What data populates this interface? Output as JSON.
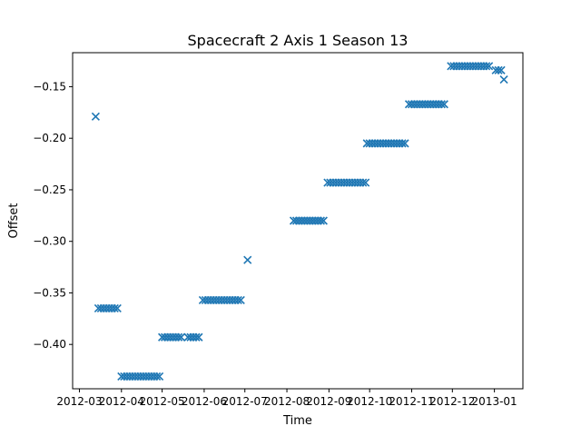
{
  "chart_data": {
    "type": "scatter",
    "title": "Spacecraft 2 Axis 1 Season 13",
    "xlabel": "Time",
    "ylabel": "Offset",
    "marker": "x",
    "color": "#1f77b4",
    "grid": false,
    "legend": "none",
    "xlim": [
      "2012-02-25",
      "2013-01-22"
    ],
    "ylim": [
      -0.443,
      -0.117
    ],
    "x_ticks": [
      "2012-03",
      "2012-04",
      "2012-05",
      "2012-06",
      "2012-07",
      "2012-08",
      "2012-09",
      "2012-10",
      "2012-11",
      "2012-12",
      "2013-01"
    ],
    "y_ticks": [
      -0.4,
      -0.35,
      -0.3,
      -0.25,
      -0.2,
      -0.15
    ],
    "y_tick_labels": [
      "−0.40",
      "−0.35",
      "−0.30",
      "−0.25",
      "−0.20",
      "−0.15"
    ],
    "series": [
      {
        "points": [
          {
            "x": "2012-03-13",
            "y": -0.179
          },
          {
            "x": "2012-03-15",
            "y": -0.365
          },
          {
            "x": "2012-03-17",
            "y": -0.365
          },
          {
            "x": "2012-03-19",
            "y": -0.365
          },
          {
            "x": "2012-03-21",
            "y": -0.365
          },
          {
            "x": "2012-03-23",
            "y": -0.365
          },
          {
            "x": "2012-03-25",
            "y": -0.365
          },
          {
            "x": "2012-03-27",
            "y": -0.365
          },
          {
            "x": "2012-03-29",
            "y": -0.365
          },
          {
            "x": "2012-04-01",
            "y": -0.431
          },
          {
            "x": "2012-04-03",
            "y": -0.431
          },
          {
            "x": "2012-04-05",
            "y": -0.431
          },
          {
            "x": "2012-04-07",
            "y": -0.431
          },
          {
            "x": "2012-04-09",
            "y": -0.431
          },
          {
            "x": "2012-04-11",
            "y": -0.431
          },
          {
            "x": "2012-04-13",
            "y": -0.431
          },
          {
            "x": "2012-04-15",
            "y": -0.431
          },
          {
            "x": "2012-04-17",
            "y": -0.431
          },
          {
            "x": "2012-04-19",
            "y": -0.431
          },
          {
            "x": "2012-04-21",
            "y": -0.431
          },
          {
            "x": "2012-04-23",
            "y": -0.431
          },
          {
            "x": "2012-04-25",
            "y": -0.431
          },
          {
            "x": "2012-04-27",
            "y": -0.431
          },
          {
            "x": "2012-04-29",
            "y": -0.431
          },
          {
            "x": "2012-05-01",
            "y": -0.393
          },
          {
            "x": "2012-05-03",
            "y": -0.393
          },
          {
            "x": "2012-05-05",
            "y": -0.393
          },
          {
            "x": "2012-05-07",
            "y": -0.393
          },
          {
            "x": "2012-05-09",
            "y": -0.393
          },
          {
            "x": "2012-05-11",
            "y": -0.393
          },
          {
            "x": "2012-05-13",
            "y": -0.393
          },
          {
            "x": "2012-05-15",
            "y": -0.393
          },
          {
            "x": "2012-05-20",
            "y": -0.393
          },
          {
            "x": "2012-05-22",
            "y": -0.393
          },
          {
            "x": "2012-05-24",
            "y": -0.393
          },
          {
            "x": "2012-05-26",
            "y": -0.393
          },
          {
            "x": "2012-05-28",
            "y": -0.393
          },
          {
            "x": "2012-05-31",
            "y": -0.357
          },
          {
            "x": "2012-06-02",
            "y": -0.357
          },
          {
            "x": "2012-06-04",
            "y": -0.357
          },
          {
            "x": "2012-06-06",
            "y": -0.357
          },
          {
            "x": "2012-06-08",
            "y": -0.357
          },
          {
            "x": "2012-06-10",
            "y": -0.357
          },
          {
            "x": "2012-06-12",
            "y": -0.357
          },
          {
            "x": "2012-06-14",
            "y": -0.357
          },
          {
            "x": "2012-06-16",
            "y": -0.357
          },
          {
            "x": "2012-06-18",
            "y": -0.357
          },
          {
            "x": "2012-06-20",
            "y": -0.357
          },
          {
            "x": "2012-06-22",
            "y": -0.357
          },
          {
            "x": "2012-06-24",
            "y": -0.357
          },
          {
            "x": "2012-06-26",
            "y": -0.357
          },
          {
            "x": "2012-06-28",
            "y": -0.357
          },
          {
            "x": "2012-07-03",
            "y": -0.318
          },
          {
            "x": "2012-08-06",
            "y": -0.28
          },
          {
            "x": "2012-08-08",
            "y": -0.28
          },
          {
            "x": "2012-08-10",
            "y": -0.28
          },
          {
            "x": "2012-08-12",
            "y": -0.28
          },
          {
            "x": "2012-08-14",
            "y": -0.28
          },
          {
            "x": "2012-08-16",
            "y": -0.28
          },
          {
            "x": "2012-08-18",
            "y": -0.28
          },
          {
            "x": "2012-08-20",
            "y": -0.28
          },
          {
            "x": "2012-08-22",
            "y": -0.28
          },
          {
            "x": "2012-08-24",
            "y": -0.28
          },
          {
            "x": "2012-08-26",
            "y": -0.28
          },
          {
            "x": "2012-08-28",
            "y": -0.28
          },
          {
            "x": "2012-08-31",
            "y": -0.243
          },
          {
            "x": "2012-09-02",
            "y": -0.243
          },
          {
            "x": "2012-09-04",
            "y": -0.243
          },
          {
            "x": "2012-09-06",
            "y": -0.243
          },
          {
            "x": "2012-09-08",
            "y": -0.243
          },
          {
            "x": "2012-09-10",
            "y": -0.243
          },
          {
            "x": "2012-09-12",
            "y": -0.243
          },
          {
            "x": "2012-09-14",
            "y": -0.243
          },
          {
            "x": "2012-09-16",
            "y": -0.243
          },
          {
            "x": "2012-09-18",
            "y": -0.243
          },
          {
            "x": "2012-09-20",
            "y": -0.243
          },
          {
            "x": "2012-09-22",
            "y": -0.243
          },
          {
            "x": "2012-09-24",
            "y": -0.243
          },
          {
            "x": "2012-09-26",
            "y": -0.243
          },
          {
            "x": "2012-09-28",
            "y": -0.243
          },
          {
            "x": "2012-09-29",
            "y": -0.205
          },
          {
            "x": "2012-10-01",
            "y": -0.205
          },
          {
            "x": "2012-10-03",
            "y": -0.205
          },
          {
            "x": "2012-10-05",
            "y": -0.205
          },
          {
            "x": "2012-10-07",
            "y": -0.205
          },
          {
            "x": "2012-10-09",
            "y": -0.205
          },
          {
            "x": "2012-10-11",
            "y": -0.205
          },
          {
            "x": "2012-10-13",
            "y": -0.205
          },
          {
            "x": "2012-10-15",
            "y": -0.205
          },
          {
            "x": "2012-10-17",
            "y": -0.205
          },
          {
            "x": "2012-10-19",
            "y": -0.205
          },
          {
            "x": "2012-10-21",
            "y": -0.205
          },
          {
            "x": "2012-10-23",
            "y": -0.205
          },
          {
            "x": "2012-10-25",
            "y": -0.205
          },
          {
            "x": "2012-10-27",
            "y": -0.205
          },
          {
            "x": "2012-10-30",
            "y": -0.167
          },
          {
            "x": "2012-11-01",
            "y": -0.167
          },
          {
            "x": "2012-11-03",
            "y": -0.167
          },
          {
            "x": "2012-11-05",
            "y": -0.167
          },
          {
            "x": "2012-11-07",
            "y": -0.167
          },
          {
            "x": "2012-11-09",
            "y": -0.167
          },
          {
            "x": "2012-11-11",
            "y": -0.167
          },
          {
            "x": "2012-11-13",
            "y": -0.167
          },
          {
            "x": "2012-11-15",
            "y": -0.167
          },
          {
            "x": "2012-11-17",
            "y": -0.167
          },
          {
            "x": "2012-11-19",
            "y": -0.167
          },
          {
            "x": "2012-11-21",
            "y": -0.167
          },
          {
            "x": "2012-11-23",
            "y": -0.167
          },
          {
            "x": "2012-11-25",
            "y": -0.167
          },
          {
            "x": "2012-11-30",
            "y": -0.13
          },
          {
            "x": "2012-12-02",
            "y": -0.13
          },
          {
            "x": "2012-12-04",
            "y": -0.13
          },
          {
            "x": "2012-12-06",
            "y": -0.13
          },
          {
            "x": "2012-12-08",
            "y": -0.13
          },
          {
            "x": "2012-12-10",
            "y": -0.13
          },
          {
            "x": "2012-12-12",
            "y": -0.13
          },
          {
            "x": "2012-12-14",
            "y": -0.13
          },
          {
            "x": "2012-12-16",
            "y": -0.13
          },
          {
            "x": "2012-12-18",
            "y": -0.13
          },
          {
            "x": "2012-12-20",
            "y": -0.13
          },
          {
            "x": "2012-12-22",
            "y": -0.13
          },
          {
            "x": "2012-12-24",
            "y": -0.13
          },
          {
            "x": "2012-12-26",
            "y": -0.13
          },
          {
            "x": "2012-12-28",
            "y": -0.13
          },
          {
            "x": "2013-01-02",
            "y": -0.134
          },
          {
            "x": "2013-01-04",
            "y": -0.134
          },
          {
            "x": "2013-01-06",
            "y": -0.134
          },
          {
            "x": "2013-01-08",
            "y": -0.143
          }
        ]
      }
    ]
  }
}
